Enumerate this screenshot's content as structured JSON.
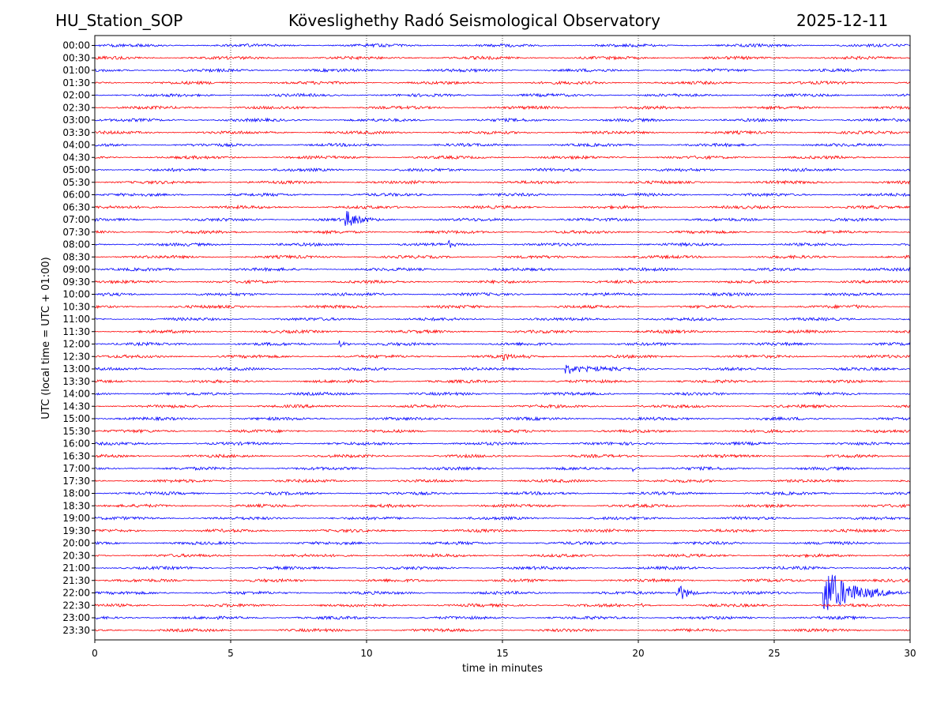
{
  "header": {
    "station": "HU_Station_SOP",
    "observatory": "Köveslighethy Radó Seismological Observatory",
    "date": "2025-12-11"
  },
  "chart_data": {
    "type": "line",
    "title": "Köveslighethy Radó Seismological Observatory",
    "xlabel": "time in minutes",
    "ylabel": "UTC (local time = UTC + 01:00)",
    "xlim": [
      0,
      30
    ],
    "xticks": [
      0,
      5,
      10,
      15,
      20,
      25,
      30
    ],
    "grid": "vertical dotted at 5-minute ticks",
    "series_colors": [
      "#0000ff",
      "#ff0000"
    ],
    "rows": [
      "00:00",
      "00:30",
      "01:00",
      "01:30",
      "02:00",
      "02:30",
      "03:00",
      "03:30",
      "04:00",
      "04:30",
      "05:00",
      "05:30",
      "06:00",
      "06:30",
      "07:00",
      "07:30",
      "08:00",
      "08:30",
      "09:00",
      "09:30",
      "10:00",
      "10:30",
      "11:00",
      "11:30",
      "12:00",
      "12:30",
      "13:00",
      "13:30",
      "14:00",
      "14:30",
      "15:00",
      "15:30",
      "16:00",
      "16:30",
      "17:00",
      "17:30",
      "18:00",
      "18:30",
      "19:00",
      "19:30",
      "20:00",
      "20:30",
      "21:00",
      "21:30",
      "22:00",
      "22:30",
      "23:00",
      "23:30"
    ],
    "events": [
      {
        "row": "07:00",
        "minute": 9.2,
        "amplitude": 0.8,
        "duration": 1.5
      },
      {
        "row": "08:00",
        "minute": 13.0,
        "amplitude": 0.3,
        "duration": 0.6
      },
      {
        "row": "10:30",
        "minute": 27.9,
        "amplitude": 0.35,
        "duration": 0.4
      },
      {
        "row": "12:00",
        "minute": 9.0,
        "amplitude": 0.4,
        "duration": 0.6
      },
      {
        "row": "12:30",
        "minute": 15.0,
        "amplitude": 0.25,
        "duration": 2.0
      },
      {
        "row": "13:00",
        "minute": 17.3,
        "amplitude": 0.45,
        "duration": 2.6
      },
      {
        "row": "17:00",
        "minute": 19.8,
        "amplitude": 0.3,
        "duration": 0.6
      },
      {
        "row": "22:00",
        "minute": 21.4,
        "amplitude": 0.95,
        "duration": 1.2
      },
      {
        "row": "22:00",
        "minute": 26.8,
        "amplitude": 2.3,
        "duration": 3.0
      },
      {
        "row": "22:30",
        "minute": 20.1,
        "amplitude": 0.3,
        "duration": 0.3
      }
    ]
  }
}
